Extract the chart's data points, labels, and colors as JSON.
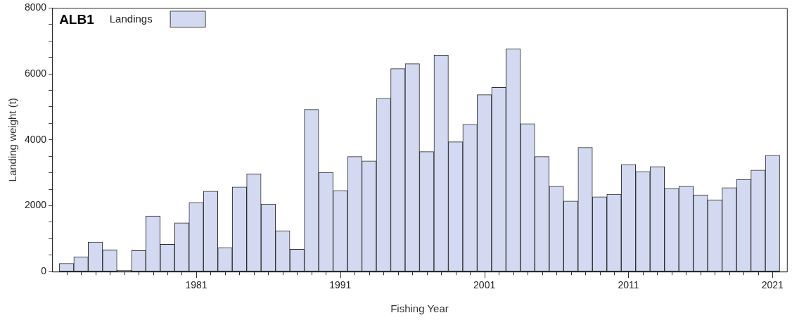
{
  "chart_data": {
    "type": "bar",
    "title": "ALB1",
    "xlabel": "Fishing Year",
    "ylabel": "Landing weight (t)",
    "legend": "top left",
    "x": [
      1972,
      1973,
      1974,
      1975,
      1976,
      1977,
      1978,
      1979,
      1980,
      1981,
      1982,
      1983,
      1984,
      1985,
      1986,
      1987,
      1988,
      1989,
      1990,
      1991,
      1992,
      1993,
      1994,
      1995,
      1996,
      1997,
      1998,
      1999,
      2000,
      2001,
      2002,
      2003,
      2004,
      2005,
      2006,
      2007,
      2008,
      2009,
      2010,
      2011,
      2012,
      2013,
      2014,
      2015,
      2016,
      2017,
      2018,
      2019,
      2020,
      2021
    ],
    "series": [
      {
        "name": "Landings",
        "color": "#d2d9f0",
        "values": [
          250,
          450,
          900,
          660,
          40,
          640,
          1690,
          830,
          1480,
          2100,
          2440,
          730,
          2570,
          2970,
          2050,
          1240,
          680,
          4920,
          3010,
          2460,
          3490,
          3360,
          5260,
          6160,
          6310,
          3640,
          6570,
          3940,
          4470,
          5370,
          5590,
          6760,
          4490,
          3490,
          2590,
          2140,
          3770,
          2270,
          2350,
          3250,
          3040,
          3190,
          2520,
          2590,
          2330,
          2180,
          2550,
          2800,
          3080,
          3530
        ]
      }
    ],
    "xlim": [
      1971,
      2022
    ],
    "xticks": [
      {
        "value": 1972,
        "label": null
      },
      {
        "value": 1973,
        "label": null
      },
      {
        "value": 1974,
        "label": null
      },
      {
        "value": 1975,
        "label": null
      },
      {
        "value": 1976,
        "label": null
      },
      {
        "value": 1977,
        "label": null
      },
      {
        "value": 1978,
        "label": null
      },
      {
        "value": 1979,
        "label": null
      },
      {
        "value": 1980,
        "label": null
      },
      1981,
      {
        "value": 1982,
        "label": null
      },
      {
        "value": 1983,
        "label": null
      },
      {
        "value": 1984,
        "label": null
      },
      {
        "value": 1985,
        "label": null
      },
      {
        "value": 1986,
        "label": null
      },
      {
        "value": 1987,
        "label": null
      },
      {
        "value": 1988,
        "label": null
      },
      {
        "value": 1989,
        "label": null
      },
      {
        "value": 1990,
        "label": null
      },
      1991,
      {
        "value": 1992,
        "label": null
      },
      {
        "value": 1993,
        "label": null
      },
      {
        "value": 1994,
        "label": null
      },
      {
        "value": 1995,
        "label": null
      },
      {
        "value": 1996,
        "label": null
      },
      {
        "value": 1997,
        "label": null
      },
      {
        "value": 1998,
        "label": null
      },
      {
        "value": 1999,
        "label": null
      },
      {
        "value": 2000,
        "label": null
      },
      2001,
      {
        "value": 2002,
        "label": null
      },
      {
        "value": 2003,
        "label": null
      },
      {
        "value": 2004,
        "label": null
      },
      {
        "value": 2005,
        "label": null
      },
      {
        "value": 2006,
        "label": null
      },
      {
        "value": 2007,
        "label": null
      },
      {
        "value": 2008,
        "label": null
      },
      {
        "value": 2009,
        "label": null
      },
      {
        "value": 2010,
        "label": null
      },
      2011,
      {
        "value": 2012,
        "label": null
      },
      {
        "value": 2013,
        "label": null
      },
      {
        "value": 2014,
        "label": null
      },
      {
        "value": 2015,
        "label": null
      },
      {
        "value": 2016,
        "label": null
      },
      {
        "value": 2017,
        "label": null
      },
      {
        "value": 2018,
        "label": null
      },
      {
        "value": 2019,
        "label": null
      },
      {
        "value": 2020,
        "label": null
      },
      2021
    ],
    "ylim": [
      0,
      8000
    ],
    "yticks": [
      0,
      {
        "value": 500,
        "label": null
      },
      {
        "value": 1000,
        "label": null
      },
      {
        "value": 1500,
        "label": null
      },
      2000,
      {
        "value": 2500,
        "label": null
      },
      {
        "value": 3000,
        "label": null
      },
      {
        "value": 3500,
        "label": null
      },
      4000,
      {
        "value": 4500,
        "label": null
      },
      {
        "value": 5000,
        "label": null
      },
      {
        "value": 5500,
        "label": null
      },
      6000,
      {
        "value": 6500,
        "label": null
      },
      {
        "value": 7000,
        "label": null
      },
      {
        "value": 7500,
        "label": null
      },
      8000
    ]
  }
}
